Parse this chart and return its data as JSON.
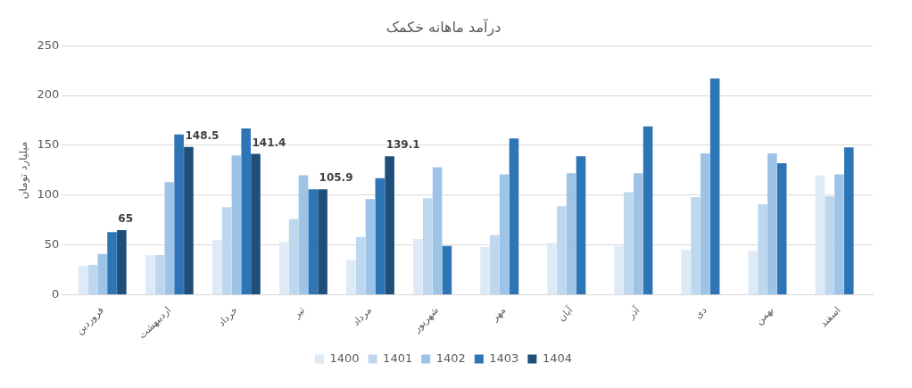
{
  "chart_data": {
    "type": "bar",
    "title": "درآمد ماهانه خکمک",
    "ylabel": "میلیارد تومان",
    "categories": [
      "فروردین",
      "اردیبهشت",
      "خرداد",
      "تیر",
      "مرداد",
      "شهریور",
      "مهر",
      "آبان",
      "آذر",
      "دی",
      "بهمن",
      "اسفند"
    ],
    "series": [
      {
        "name": "1400",
        "color": "#deebf7",
        "values": [
          29,
          40,
          55,
          53,
          35,
          56,
          48,
          52,
          49,
          45,
          44,
          120
        ]
      },
      {
        "name": "1401",
        "color": "#bdd7ee",
        "values": [
          30,
          40,
          88,
          76,
          58,
          97,
          60,
          89,
          103,
          98,
          91,
          99
        ]
      },
      {
        "name": "1402",
        "color": "#9dc3e6",
        "values": [
          41,
          113,
          140,
          120,
          96,
          128,
          121,
          122,
          122,
          142,
          142,
          121
        ]
      },
      {
        "name": "1403",
        "color": "#2e75b6",
        "values": [
          63,
          161,
          167,
          106,
          117,
          49,
          157,
          139,
          169,
          217,
          132,
          148
        ]
      },
      {
        "name": "1404",
        "color": "#1f4e79",
        "values": [
          65,
          148.5,
          141.4,
          105.9,
          139.1,
          null,
          null,
          null,
          null,
          null,
          null,
          null
        ],
        "value_labels": [
          "65",
          "148.5",
          "141.4",
          "105.9",
          "139.1",
          null,
          null,
          null,
          null,
          null,
          null,
          null
        ]
      }
    ],
    "ylim": [
      0,
      250
    ],
    "yticks": [
      0,
      50,
      100,
      150,
      200,
      250
    ],
    "grid": "y",
    "legend": "bottom"
  }
}
